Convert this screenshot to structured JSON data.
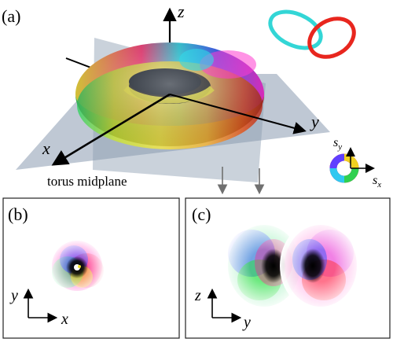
{
  "panel_a": {
    "label": "(a)",
    "axis_z": "z",
    "axis_y": "y",
    "axis_x": "x",
    "midplane_label": "torus midplane",
    "colorwheel_axis_y": "s",
    "colorwheel_axis_y_sub": "y",
    "colorwheel_axis_x": "s",
    "colorwheel_axis_x_sub": "x"
  },
  "panel_b": {
    "label": "(b)",
    "axis_vertical": "y",
    "axis_horizontal": "x"
  },
  "panel_c": {
    "label": "(c)",
    "axis_vertical": "z",
    "axis_horizontal": "y"
  },
  "colors": {
    "plane": "#8a9bb0",
    "link_cyan": "#33d6d6",
    "link_red": "#e8261e",
    "arrow_gray": "#707070"
  }
}
